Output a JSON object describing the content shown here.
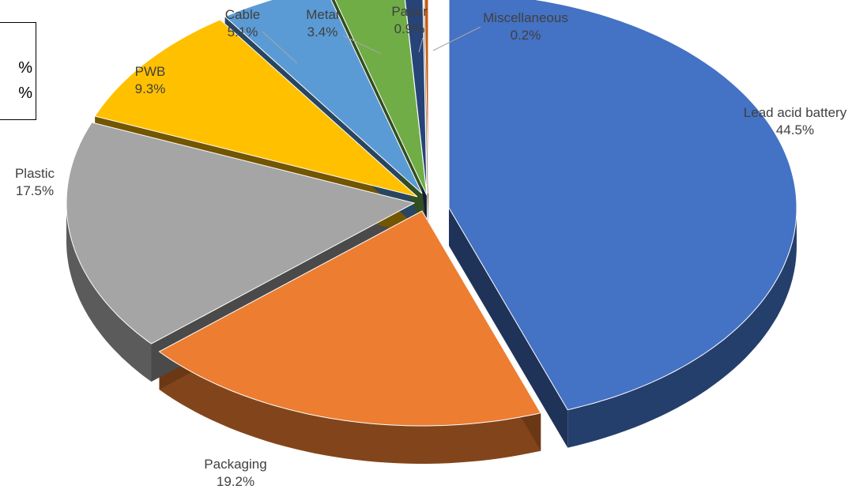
{
  "inset": {
    "line1": "%",
    "line2": "%"
  },
  "chart_data": {
    "type": "pie",
    "title": "",
    "categories": [
      "Lead acid battery",
      "Packaging",
      "Plastic",
      "PWB",
      "Cable",
      "Metal",
      "Paper",
      "Miscellaneous"
    ],
    "values": [
      44.5,
      19.2,
      17.5,
      9.3,
      5.1,
      3.4,
      0.9,
      0.2
    ],
    "value_labels": [
      "44.5%",
      "19.2%",
      "17.5%",
      "9.3%",
      "5.1%",
      "3.4%",
      "0.9%",
      "0.2%"
    ],
    "colors": [
      "#4472C4",
      "#ED7D31",
      "#A5A5A5",
      "#FFC000",
      "#5B9BD5",
      "#70AD47",
      "#264478",
      "#C55A11"
    ],
    "exploded": true,
    "style": "3d"
  }
}
